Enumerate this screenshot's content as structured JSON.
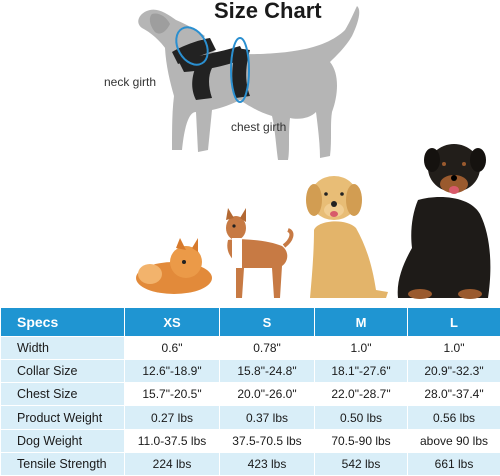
{
  "header": {
    "title": "Size Chart"
  },
  "diagram": {
    "neck_label": "neck girth",
    "chest_label": "chest girth"
  },
  "colors": {
    "table_header": "#1f95d2",
    "row_alt": "#d9eef8",
    "dog_silhouette": "#b5b5b5",
    "measure_line": "#2a8fd0"
  },
  "table": {
    "headers": [
      "Specs",
      "XS",
      "S",
      "M",
      "L"
    ],
    "rows": [
      [
        "Width",
        "0.6\"",
        "0.78\"",
        "1.0\"",
        "1.0\""
      ],
      [
        "Collar Size",
        "12.6\"-18.9\"",
        "15.8\"-24.8\"",
        "18.1\"-27.6\"",
        "20.9\"-32.3\""
      ],
      [
        "Chest Size",
        "15.7\"-20.5\"",
        "20.0\"-26.0\"",
        "22.0\"-28.7\"",
        "28.0\"-37.4\""
      ],
      [
        "Product Weight",
        "0.27 lbs",
        "0.37 lbs",
        "0.50 lbs",
        "0.56 lbs"
      ],
      [
        "Dog Weight",
        "11.0-37.5 lbs",
        "37.5-70.5 lbs",
        "70.5-90 lbs",
        "above 90 lbs"
      ],
      [
        "Tensile Strength",
        "224 lbs",
        "423 lbs",
        "542 lbs",
        "661 lbs"
      ]
    ]
  }
}
